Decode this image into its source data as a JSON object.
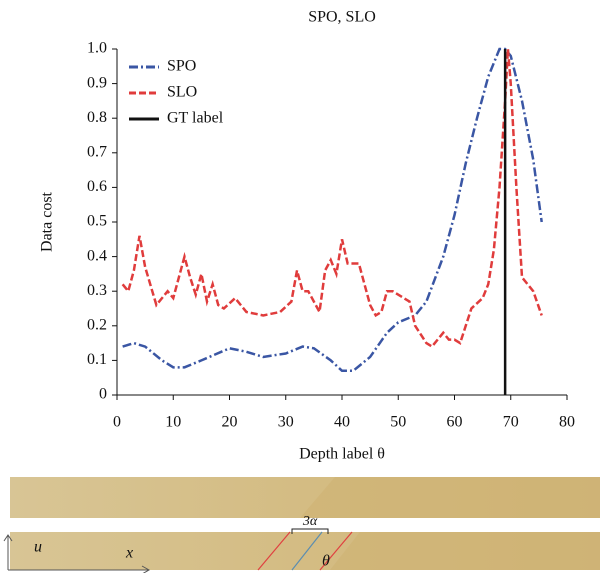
{
  "chart_data": {
    "type": "line",
    "title": "SPO, SLO",
    "x_label": "Depth label θ",
    "y_label": "Data cost",
    "xlim": [
      0,
      80
    ],
    "xticks": [
      0,
      10,
      20,
      30,
      40,
      50,
      60,
      70,
      80
    ],
    "ylim": [
      0,
      1
    ],
    "yticks": [
      0,
      0.1,
      0.2,
      0.3,
      0.4,
      0.5,
      0.6,
      0.7,
      0.8,
      0.9,
      {
        "value": 1,
        "label": "1.0"
      }
    ],
    "grid": false,
    "legend": "upper left",
    "series": [
      {
        "name": "SPO",
        "color": "#3a56a4",
        "style": "dashdot",
        "x": [
          1,
          3,
          5,
          8,
          10,
          12,
          15,
          20,
          23,
          26,
          30,
          33,
          35,
          38,
          40,
          42,
          45,
          48,
          50,
          53,
          55,
          58,
          60,
          62,
          64,
          66,
          68,
          69,
          70,
          72,
          74,
          75.5
        ],
        "values": [
          0.14,
          0.15,
          0.14,
          0.1,
          0.08,
          0.08,
          0.1,
          0.135,
          0.125,
          0.11,
          0.12,
          0.14,
          0.135,
          0.1,
          0.07,
          0.07,
          0.11,
          0.18,
          0.21,
          0.23,
          0.27,
          0.4,
          0.52,
          0.67,
          0.8,
          0.92,
          1.0,
          1.0,
          0.98,
          0.85,
          0.68,
          0.5
        ]
      },
      {
        "name": "SLO",
        "color": "#e03c3c",
        "style": "dashed",
        "x": [
          1,
          2,
          3,
          4,
          5,
          7,
          9,
          10,
          11,
          12,
          13,
          14,
          15,
          16,
          17,
          18,
          19,
          21,
          23,
          26,
          29,
          31,
          32,
          33,
          34,
          36,
          37,
          38,
          39,
          40,
          41,
          43,
          45,
          46,
          47,
          48,
          49,
          51,
          52,
          53,
          55,
          56,
          58,
          59,
          60,
          61,
          62,
          63,
          65,
          66,
          67,
          68,
          69,
          69.5,
          70,
          71,
          72,
          74,
          75.5
        ],
        "values": [
          0.32,
          0.3,
          0.36,
          0.46,
          0.37,
          0.26,
          0.3,
          0.28,
          0.34,
          0.4,
          0.34,
          0.29,
          0.35,
          0.27,
          0.32,
          0.26,
          0.25,
          0.28,
          0.24,
          0.23,
          0.24,
          0.27,
          0.36,
          0.3,
          0.3,
          0.24,
          0.36,
          0.39,
          0.35,
          0.45,
          0.38,
          0.38,
          0.26,
          0.23,
          0.24,
          0.3,
          0.3,
          0.28,
          0.27,
          0.2,
          0.15,
          0.14,
          0.18,
          0.16,
          0.16,
          0.15,
          0.2,
          0.25,
          0.28,
          0.32,
          0.42,
          0.6,
          0.85,
          1.0,
          0.9,
          0.6,
          0.34,
          0.3,
          0.23
        ]
      },
      {
        "name": "GT label",
        "color": "#111111",
        "style": "solid",
        "x": [
          69,
          69
        ],
        "values": [
          0,
          1
        ]
      }
    ]
  },
  "image_labels": {
    "u": "u",
    "x": "x",
    "alpha": "3α",
    "theta": "θ"
  }
}
